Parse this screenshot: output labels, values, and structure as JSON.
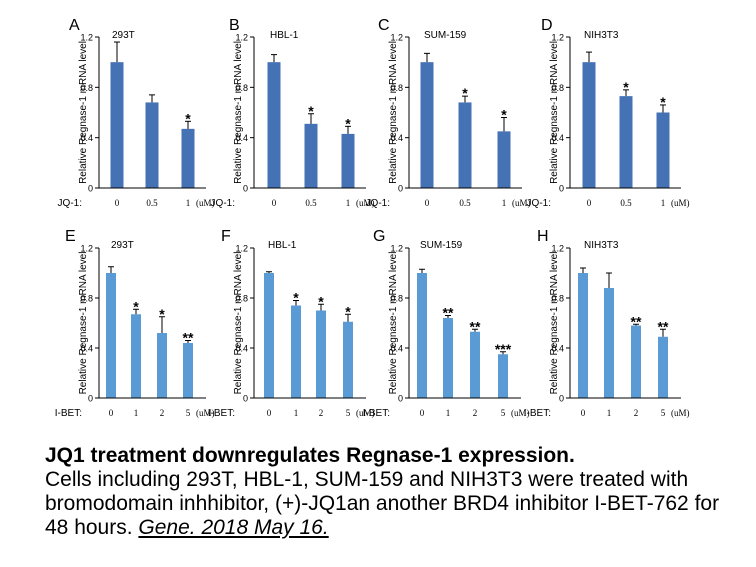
{
  "colors": {
    "panel_top_bar": "#4472b4",
    "panel_bottom_bar": "#5b9bd5",
    "axis": "#000000",
    "error": "#000000"
  },
  "chart_data": [
    {
      "panel": "A",
      "title": "293T",
      "type": "bar",
      "ylabel": "Relative  Regnase-1 mRNA level",
      "treatment_label": "JQ-1:",
      "unit_label": "(uM)",
      "categories": [
        "0",
        "0.5",
        "1"
      ],
      "values": [
        1.0,
        0.68,
        0.47
      ],
      "errors": [
        0.16,
        0.06,
        0.06
      ],
      "significance": [
        "",
        "",
        "*"
      ],
      "ylim": [
        0,
        1.2
      ],
      "yticks": [
        "0",
        "0.4",
        "0.8",
        "1.2"
      ]
    },
    {
      "panel": "B",
      "title": "HBL-1",
      "type": "bar",
      "ylabel": "Relative  Regnase-1 mRNA level",
      "treatment_label": "JQ-1:",
      "unit_label": "(uM)",
      "categories": [
        "0",
        "0.5",
        "1"
      ],
      "values": [
        1.0,
        0.51,
        0.43
      ],
      "errors": [
        0.06,
        0.08,
        0.06
      ],
      "significance": [
        "",
        "*",
        "*"
      ],
      "ylim": [
        0,
        1.2
      ],
      "yticks": [
        "0",
        "0.4",
        "0.8",
        "1.2"
      ]
    },
    {
      "panel": "C",
      "title": "SUM-159",
      "type": "bar",
      "ylabel": "Relative  Regnase-1 mRNA level",
      "treatment_label": "JQ-1:",
      "unit_label": "(uM)",
      "categories": [
        "0",
        "0.5",
        "1"
      ],
      "values": [
        1.0,
        0.68,
        0.45
      ],
      "errors": [
        0.07,
        0.05,
        0.11
      ],
      "significance": [
        "",
        "*",
        "*"
      ],
      "ylim": [
        0,
        1.2
      ],
      "yticks": [
        "0",
        "0.4",
        "0.8",
        "1.2"
      ]
    },
    {
      "panel": "D",
      "title": "NIH3T3",
      "type": "bar",
      "ylabel": "Relative  Regnase-1 mRNA level",
      "treatment_label": "JQ-1:",
      "unit_label": "(uM)",
      "categories": [
        "0",
        "0.5",
        "1"
      ],
      "values": [
        1.0,
        0.73,
        0.6
      ],
      "errors": [
        0.08,
        0.05,
        0.06
      ],
      "significance": [
        "",
        "*",
        "*"
      ],
      "ylim": [
        0,
        1.2
      ],
      "yticks": [
        "0",
        "0.4",
        "0.8",
        "1.2"
      ]
    },
    {
      "panel": "E",
      "title": "293T",
      "type": "bar",
      "ylabel": "Relative  Regnase-1 mRNA level",
      "treatment_label": "I-BET:",
      "unit_label": "(uM)",
      "categories": [
        "0",
        "1",
        "2",
        "5"
      ],
      "values": [
        1.0,
        0.67,
        0.52,
        0.44
      ],
      "errors": [
        0.05,
        0.04,
        0.13,
        0.02
      ],
      "significance": [
        "",
        "*",
        "*",
        "**"
      ],
      "ylim": [
        0,
        1.2
      ],
      "yticks": [
        "0",
        "0.4",
        "0.8",
        "1.2"
      ]
    },
    {
      "panel": "F",
      "title": "HBL-1",
      "type": "bar",
      "ylabel": "Relative  Regnase-1 mRNA level",
      "treatment_label": "I-BET:",
      "unit_label": "(uM)",
      "categories": [
        "0",
        "1",
        "2",
        "5"
      ],
      "values": [
        1.0,
        0.74,
        0.7,
        0.61
      ],
      "errors": [
        0.01,
        0.04,
        0.05,
        0.06
      ],
      "significance": [
        "",
        "*",
        "*",
        "*"
      ],
      "ylim": [
        0,
        1.2
      ],
      "yticks": [
        "0",
        "0.4",
        "0.8",
        "1.2"
      ]
    },
    {
      "panel": "G",
      "title": "SUM-159",
      "type": "bar",
      "ylabel": "Relative  Regnase-1 mRNA level",
      "treatment_label": "I-BET:",
      "unit_label": "(uM)",
      "categories": [
        "0",
        "1",
        "2",
        "5"
      ],
      "values": [
        1.0,
        0.64,
        0.53,
        0.35
      ],
      "errors": [
        0.03,
        0.02,
        0.02,
        0.02
      ],
      "significance": [
        "",
        "**",
        "**",
        "***"
      ],
      "ylim": [
        0,
        1.2
      ],
      "yticks": [
        "0",
        "0.4",
        "0.8",
        "1.2"
      ]
    },
    {
      "panel": "H",
      "title": "NIH3T3",
      "type": "bar",
      "ylabel": "Relative  Regnase-1 mRNA level",
      "treatment_label": "I-BET:",
      "unit_label": "(uM)",
      "categories": [
        "0",
        "1",
        "2",
        "5"
      ],
      "values": [
        1.0,
        0.88,
        0.58,
        0.49
      ],
      "errors": [
        0.04,
        0.12,
        0.01,
        0.06
      ],
      "significance": [
        "",
        "",
        "**",
        "**"
      ],
      "ylim": [
        0,
        1.2
      ],
      "yticks": [
        "0",
        "0.4",
        "0.8",
        "1.2"
      ]
    }
  ],
  "caption": {
    "title": "JQ1 treatment downregulates Regnase-1 expression.",
    "body": "Cells including 293T, HBL-1, SUM-159 and NIH3T3 were treated with bromodomain inhhibitor, (+)-JQ1an another BRD4 inhibitor I-BET-762 for 48 hours. ",
    "reference": "Gene. 2018 May 16."
  }
}
